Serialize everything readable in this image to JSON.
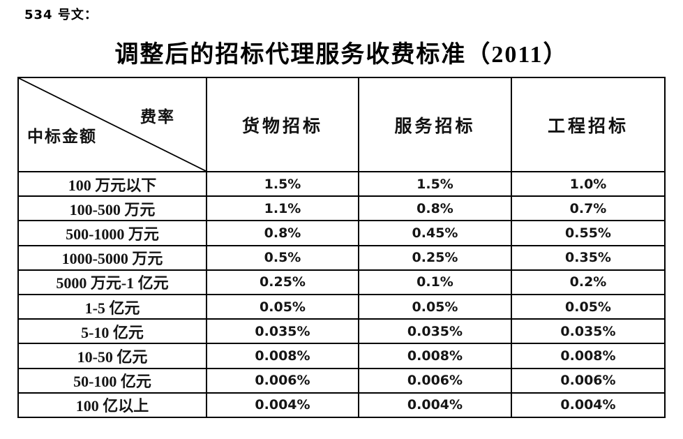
{
  "page": {
    "doc_label": "534 号文：",
    "title": "调整后的招标代理服务收费标准（2011）"
  },
  "colors": {
    "background": "#ffffff",
    "text": "#111111",
    "border": "#000000"
  },
  "table": {
    "corner": {
      "top_right_label": "费率",
      "bottom_left_label": "中标金额"
    },
    "columns": [
      "货物招标",
      "服务招标",
      "工程招标"
    ],
    "rows": [
      {
        "amount": "100 万元以下",
        "values": [
          "1.5%",
          "1.5%",
          "1.0%"
        ]
      },
      {
        "amount": "100-500 万元",
        "values": [
          "1.1%",
          "0.8%",
          "0.7%"
        ]
      },
      {
        "amount": "500-1000 万元",
        "values": [
          "0.8%",
          "0.45%",
          "0.55%"
        ]
      },
      {
        "amount": "1000-5000 万元",
        "values": [
          "0.5%",
          "0.25%",
          "0.35%"
        ]
      },
      {
        "amount": "5000 万元-1 亿元",
        "values": [
          "0.25%",
          "0.1%",
          "0.2%"
        ]
      },
      {
        "amount": "1-5 亿元",
        "values": [
          "0.05%",
          "0.05%",
          "0.05%"
        ]
      },
      {
        "amount": "5-10 亿元",
        "values": [
          "0.035%",
          "0.035%",
          "0.035%"
        ]
      },
      {
        "amount": "10-50 亿元",
        "values": [
          "0.008%",
          "0.008%",
          "0.008%"
        ]
      },
      {
        "amount": "50-100 亿元",
        "values": [
          "0.006%",
          "0.006%",
          "0.006%"
        ]
      },
      {
        "amount": "100 亿以上",
        "values": [
          "0.004%",
          "0.004%",
          "0.004%"
        ]
      }
    ]
  }
}
